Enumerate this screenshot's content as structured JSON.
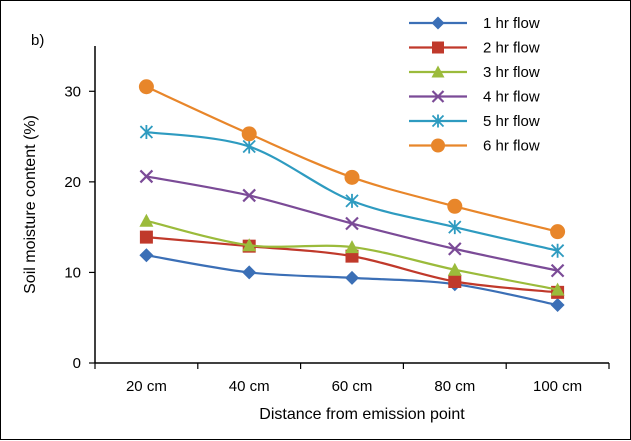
{
  "chart_data": {
    "type": "line",
    "panel_label": "b)",
    "title": "",
    "xlabel": "Distance from emission point",
    "ylabel": "Soil moisture content (%)",
    "categories": [
      "20 cm",
      "40 cm",
      "60 cm",
      "80 cm",
      "100 cm"
    ],
    "ylim": [
      0,
      35
    ],
    "yticks": [
      0,
      10,
      20,
      30
    ],
    "grid": false,
    "legend_position": "top-right",
    "series": [
      {
        "name": "1 hr flow",
        "values": [
          11.9,
          10.0,
          9.4,
          8.7,
          6.4
        ],
        "color": "#3B6FB6",
        "marker": "diamond"
      },
      {
        "name": "2 hr flow",
        "values": [
          13.9,
          12.9,
          11.8,
          9.0,
          7.8
        ],
        "color": "#C0392B",
        "marker": "square"
      },
      {
        "name": "3 hr flow",
        "values": [
          15.7,
          13.0,
          12.8,
          10.3,
          8.1
        ],
        "color": "#9BBB3B",
        "marker": "triangle"
      },
      {
        "name": "4 hr flow",
        "values": [
          20.6,
          18.5,
          15.4,
          12.6,
          10.2
        ],
        "color": "#7B4B97",
        "marker": "x"
      },
      {
        "name": "5 hr flow",
        "values": [
          25.5,
          23.9,
          17.9,
          15.0,
          12.4
        ],
        "color": "#2E9BC0",
        "marker": "star"
      },
      {
        "name": "6 hr flow",
        "values": [
          30.5,
          25.3,
          20.5,
          17.3,
          14.5
        ],
        "color": "#E8862A",
        "marker": "circle"
      }
    ]
  }
}
